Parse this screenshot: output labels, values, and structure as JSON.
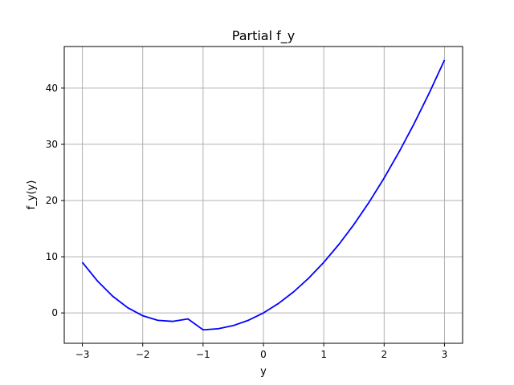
{
  "chart_data": {
    "type": "line",
    "title": "Partial f_y",
    "xlabel": "y",
    "ylabel": "f_y(y)",
    "xlim": [
      -3.3,
      3.3
    ],
    "ylim": [
      -5.4,
      47.4
    ],
    "grid": true,
    "x_ticks": [
      -3,
      -2,
      -1,
      0,
      1,
      2,
      3
    ],
    "x_tick_labels": [
      "−3",
      "−2",
      "−1",
      "0",
      "1",
      "2",
      "3"
    ],
    "y_ticks": [
      0,
      10,
      20,
      30,
      40
    ],
    "y_tick_labels": [
      "0",
      "10",
      "20",
      "30",
      "40"
    ],
    "series": [
      {
        "color": "#0000ff",
        "x": [
          -3.0,
          -2.75,
          -2.5,
          -2.25,
          -2.0,
          -1.75,
          -1.5,
          -1.25,
          -1.0,
          -0.75,
          -0.5,
          -0.25,
          0.0,
          0.25,
          0.5,
          0.75,
          1.0,
          1.25,
          1.5,
          1.75,
          2.0,
          2.25,
          2.5,
          2.75,
          3.0
        ],
        "y": [
          9.0,
          5.69,
          3.0,
          0.94,
          -0.5,
          -1.31,
          -1.5,
          -1.06,
          -3.0,
          -2.81,
          -2.25,
          -1.31,
          0.0,
          1.69,
          3.75,
          6.19,
          9.0,
          12.19,
          15.75,
          19.69,
          24.0,
          28.69,
          33.75,
          39.19,
          45.0
        ]
      }
    ]
  }
}
